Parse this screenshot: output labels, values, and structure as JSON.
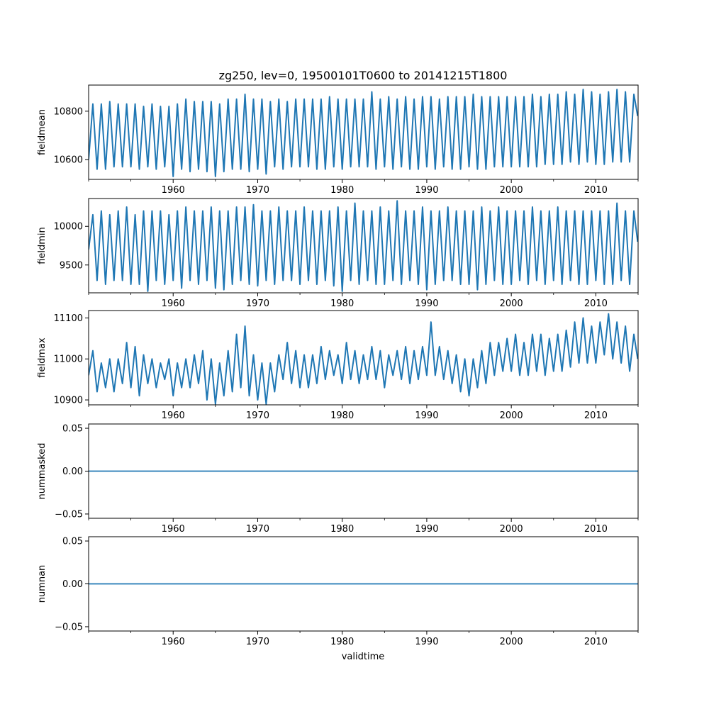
{
  "title": "zg250, lev=0, 19500101T0600 to 20141215T1800",
  "xlabel": "validtime",
  "series_color": "#1f77b4",
  "chart_data": [
    {
      "type": "line",
      "ylabel": "fieldmean",
      "xlim": [
        1950.0,
        2015.0
      ],
      "ylim": [
        10518,
        10908
      ],
      "yticks": [
        10600,
        10800
      ],
      "ytick_labels": [
        "10600",
        "10800"
      ],
      "xticks": [
        1960,
        1970,
        1980,
        1990,
        2000,
        2010
      ],
      "xtick_labels": [
        "1960",
        "1970",
        "1980",
        "1990",
        "2000",
        "2010"
      ],
      "series": [
        {
          "x": [
            1950.0,
            1950.5,
            1951.0,
            1951.5,
            1952.0,
            1952.5,
            1953.0,
            1953.5,
            1954.0,
            1954.5,
            1955.0,
            1955.5,
            1956.0,
            1956.5,
            1957.0,
            1957.5,
            1958.0,
            1958.5,
            1959.0,
            1959.5,
            1960.0,
            1960.5,
            1961.0,
            1961.5,
            1962.0,
            1962.5,
            1963.0,
            1963.5,
            1964.0,
            1964.5,
            1965.0,
            1965.5,
            1966.0,
            1966.5,
            1967.0,
            1967.5,
            1968.0,
            1968.5,
            1969.0,
            1969.5,
            1970.0,
            1970.5,
            1971.0,
            1971.5,
            1972.0,
            1972.5,
            1973.0,
            1973.5,
            1974.0,
            1974.5,
            1975.0,
            1975.5,
            1976.0,
            1976.5,
            1977.0,
            1977.5,
            1978.0,
            1978.5,
            1979.0,
            1979.5,
            1980.0,
            1980.5,
            1981.0,
            1981.5,
            1982.0,
            1982.5,
            1983.0,
            1983.5,
            1984.0,
            1984.5,
            1985.0,
            1985.5,
            1986.0,
            1986.5,
            1987.0,
            1987.5,
            1988.0,
            1988.5,
            1989.0,
            1989.5,
            1990.0,
            1990.5,
            1991.0,
            1991.5,
            1992.0,
            1992.5,
            1993.0,
            1993.5,
            1994.0,
            1994.5,
            1995.0,
            1995.5,
            1996.0,
            1996.5,
            1997.0,
            1997.5,
            1998.0,
            1998.5,
            1999.0,
            1999.5,
            2000.0,
            2000.5,
            2001.0,
            2001.5,
            2002.0,
            2002.5,
            2003.0,
            2003.5,
            2004.0,
            2004.5,
            2005.0,
            2005.5,
            2006.0,
            2006.5,
            2007.0,
            2007.5,
            2008.0,
            2008.5,
            2009.0,
            2009.5,
            2010.0,
            2010.5,
            2011.0,
            2011.5,
            2012.0,
            2012.5,
            2013.0,
            2013.5,
            2014.0,
            2014.5,
            2014.95
          ],
          "y": [
            10600,
            10830,
            10560,
            10830,
            10560,
            10840,
            10570,
            10830,
            10570,
            10830,
            10570,
            10830,
            10560,
            10820,
            10570,
            10830,
            10560,
            10820,
            10570,
            10820,
            10530,
            10830,
            10560,
            10850,
            10550,
            10840,
            10560,
            10840,
            10550,
            10840,
            10530,
            10830,
            10550,
            10850,
            10560,
            10850,
            10560,
            10870,
            10550,
            10850,
            10560,
            10850,
            10540,
            10840,
            10570,
            10850,
            10560,
            10840,
            10570,
            10850,
            10570,
            10850,
            10570,
            10850,
            10560,
            10850,
            10560,
            10860,
            10570,
            10850,
            10560,
            10850,
            10570,
            10850,
            10570,
            10850,
            10570,
            10880,
            10560,
            10850,
            10570,
            10860,
            10560,
            10850,
            10570,
            10860,
            10560,
            10850,
            10560,
            10860,
            10570,
            10860,
            10560,
            10850,
            10570,
            10860,
            10560,
            10860,
            10560,
            10860,
            10570,
            10870,
            10560,
            10860,
            10560,
            10860,
            10570,
            10860,
            10570,
            10860,
            10570,
            10860,
            10570,
            10860,
            10570,
            10870,
            10570,
            10860,
            10580,
            10870,
            10580,
            10870,
            10580,
            10880,
            10590,
            10870,
            10580,
            10890,
            10590,
            10880,
            10580,
            10870,
            10580,
            10880,
            10590,
            10890,
            10590,
            10880,
            10590,
            10870,
            10780
          ]
        }
      ]
    },
    {
      "type": "line",
      "ylabel": "fieldmin",
      "xlim": [
        1950.0,
        2015.0
      ],
      "ylim": [
        9140,
        10360
      ],
      "yticks": [
        9500,
        10000
      ],
      "ytick_labels": [
        "9500",
        "10000"
      ],
      "xticks": [
        1960,
        1970,
        1980,
        1990,
        2000,
        2010
      ],
      "xtick_labels": [
        "1960",
        "1970",
        "1980",
        "1990",
        "2000",
        "2010"
      ],
      "series": [
        {
          "x": [
            1950.0,
            1950.5,
            1951.0,
            1951.5,
            1952.0,
            1952.5,
            1953.0,
            1953.5,
            1954.0,
            1954.5,
            1955.0,
            1955.5,
            1956.0,
            1956.5,
            1957.0,
            1957.5,
            1958.0,
            1958.5,
            1959.0,
            1959.5,
            1960.0,
            1960.5,
            1961.0,
            1961.5,
            1962.0,
            1962.5,
            1963.0,
            1963.5,
            1964.0,
            1964.5,
            1965.0,
            1965.5,
            1966.0,
            1966.5,
            1967.0,
            1967.5,
            1968.0,
            1968.5,
            1969.0,
            1969.5,
            1970.0,
            1970.5,
            1971.0,
            1971.5,
            1972.0,
            1972.5,
            1973.0,
            1973.5,
            1974.0,
            1974.5,
            1975.0,
            1975.5,
            1976.0,
            1976.5,
            1977.0,
            1977.5,
            1978.0,
            1978.5,
            1979.0,
            1979.5,
            1980.0,
            1980.5,
            1981.0,
            1981.5,
            1982.0,
            1982.5,
            1983.0,
            1983.5,
            1984.0,
            1984.5,
            1985.0,
            1985.5,
            1986.0,
            1986.5,
            1987.0,
            1987.5,
            1988.0,
            1988.5,
            1989.0,
            1989.5,
            1990.0,
            1990.5,
            1991.0,
            1991.5,
            1992.0,
            1992.5,
            1993.0,
            1993.5,
            1994.0,
            1994.5,
            1995.0,
            1995.5,
            1996.0,
            1996.5,
            1997.0,
            1997.5,
            1998.0,
            1998.5,
            1999.0,
            1999.5,
            2000.0,
            2000.5,
            2001.0,
            2001.5,
            2002.0,
            2002.5,
            2003.0,
            2003.5,
            2004.0,
            2004.5,
            2005.0,
            2005.5,
            2006.0,
            2006.5,
            2007.0,
            2007.5,
            2008.0,
            2008.5,
            2009.0,
            2009.5,
            2010.0,
            2010.5,
            2011.0,
            2011.5,
            2012.0,
            2012.5,
            2013.0,
            2013.5,
            2014.0,
            2014.5,
            2014.95
          ],
          "y": [
            9700,
            10150,
            9300,
            10200,
            9250,
            10150,
            9300,
            10200,
            9300,
            10250,
            9250,
            10150,
            9250,
            10200,
            9160,
            10200,
            9300,
            10200,
            9250,
            10150,
            9300,
            10200,
            9200,
            10250,
            9300,
            10200,
            9250,
            10200,
            9300,
            10250,
            9200,
            10200,
            9180,
            10200,
            9250,
            10250,
            9300,
            10250,
            9250,
            10280,
            9230,
            10200,
            9300,
            10200,
            9250,
            10250,
            9300,
            10200,
            9300,
            10200,
            9250,
            10250,
            9300,
            10200,
            9250,
            10200,
            9300,
            10200,
            9230,
            10250,
            9160,
            10200,
            9300,
            10300,
            9250,
            10200,
            9300,
            10200,
            9250,
            10250,
            9250,
            10200,
            9300,
            10330,
            9250,
            10200,
            9300,
            10200,
            9250,
            10250,
            9180,
            10200,
            9250,
            10200,
            9300,
            10250,
            9300,
            10200,
            9250,
            10200,
            9250,
            10200,
            9180,
            10250,
            9250,
            10200,
            9300,
            10250,
            9250,
            10200,
            9250,
            10200,
            9300,
            10200,
            9250,
            10250,
            9300,
            10200,
            9250,
            10200,
            9300,
            10250,
            9250,
            10200,
            9300,
            10200,
            9250,
            10200,
            9250,
            10200,
            9300,
            10200,
            9250,
            10200,
            9250,
            10300,
            9300,
            10200,
            9250,
            10200,
            9800
          ]
        }
      ]
    },
    {
      "type": "line",
      "ylabel": "fieldmax",
      "xlim": [
        1950.0,
        2015.0
      ],
      "ylim": [
        10888,
        11118
      ],
      "yticks": [
        10900,
        11000,
        11100
      ],
      "ytick_labels": [
        "10900",
        "11000",
        "11100"
      ],
      "xticks": [
        1960,
        1970,
        1980,
        1990,
        2000,
        2010
      ],
      "xtick_labels": [
        "1960",
        "1970",
        "1980",
        "1990",
        "2000",
        "2010"
      ],
      "series": [
        {
          "x": [
            1950.0,
            1950.5,
            1951.0,
            1951.5,
            1952.0,
            1952.5,
            1953.0,
            1953.5,
            1954.0,
            1954.5,
            1955.0,
            1955.5,
            1956.0,
            1956.5,
            1957.0,
            1957.5,
            1958.0,
            1958.5,
            1959.0,
            1959.5,
            1960.0,
            1960.5,
            1961.0,
            1961.5,
            1962.0,
            1962.5,
            1963.0,
            1963.5,
            1964.0,
            1964.5,
            1965.0,
            1965.5,
            1966.0,
            1966.5,
            1967.0,
            1967.5,
            1968.0,
            1968.5,
            1969.0,
            1969.5,
            1970.0,
            1970.5,
            1971.0,
            1971.5,
            1972.0,
            1972.5,
            1973.0,
            1973.5,
            1974.0,
            1974.5,
            1975.0,
            1975.5,
            1976.0,
            1976.5,
            1977.0,
            1977.5,
            1978.0,
            1978.5,
            1979.0,
            1979.5,
            1980.0,
            1980.5,
            1981.0,
            1981.5,
            1982.0,
            1982.5,
            1983.0,
            1983.5,
            1984.0,
            1984.5,
            1985.0,
            1985.5,
            1986.0,
            1986.5,
            1987.0,
            1987.5,
            1988.0,
            1988.5,
            1989.0,
            1989.5,
            1990.0,
            1990.5,
            1991.0,
            1991.5,
            1992.0,
            1992.5,
            1993.0,
            1993.5,
            1994.0,
            1994.5,
            1995.0,
            1995.5,
            1996.0,
            1996.5,
            1997.0,
            1997.5,
            1998.0,
            1998.5,
            1999.0,
            1999.5,
            2000.0,
            2000.5,
            2001.0,
            2001.5,
            2002.0,
            2002.5,
            2003.0,
            2003.5,
            2004.0,
            2004.5,
            2005.0,
            2005.5,
            2006.0,
            2006.5,
            2007.0,
            2007.5,
            2008.0,
            2008.5,
            2009.0,
            2009.5,
            2010.0,
            2010.5,
            2011.0,
            2011.5,
            2012.0,
            2012.5,
            2013.0,
            2013.5,
            2014.0,
            2014.5,
            2014.95
          ],
          "y": [
            10960,
            11020,
            10920,
            10990,
            10930,
            11000,
            10920,
            11000,
            10940,
            11040,
            10930,
            11030,
            10910,
            11010,
            10940,
            11000,
            10930,
            10990,
            10950,
            11000,
            10910,
            10990,
            10930,
            11000,
            10930,
            11010,
            10940,
            11020,
            10900,
            11000,
            10890,
            10990,
            10910,
            11020,
            10920,
            11060,
            10930,
            11080,
            10910,
            11010,
            10900,
            10990,
            10890,
            10990,
            10920,
            11010,
            10950,
            11040,
            10940,
            11020,
            10930,
            11010,
            10930,
            11010,
            10940,
            11030,
            10950,
            11020,
            10960,
            11010,
            10940,
            11040,
            10950,
            11020,
            10940,
            11010,
            10950,
            11030,
            10950,
            11020,
            10930,
            11010,
            10960,
            11020,
            10950,
            11030,
            10940,
            11020,
            10950,
            11030,
            10960,
            11090,
            10960,
            11030,
            10950,
            11020,
            10940,
            11010,
            10920,
            11000,
            10910,
            11000,
            10930,
            11020,
            10940,
            11040,
            10960,
            11040,
            10970,
            11050,
            10970,
            11060,
            10960,
            11040,
            10960,
            11060,
            10970,
            11060,
            10960,
            11050,
            10970,
            11060,
            10970,
            11070,
            10980,
            11090,
            10990,
            11100,
            10990,
            11080,
            10990,
            11090,
            11010,
            11110,
            11000,
            11090,
            10990,
            11080,
            10970,
            11060,
            11000
          ]
        }
      ]
    },
    {
      "type": "line",
      "ylabel": "nummasked",
      "xlim": [
        1950.0,
        2015.0
      ],
      "ylim": [
        -0.055,
        0.055
      ],
      "yticks": [
        -0.05,
        0.0,
        0.05
      ],
      "ytick_labels": [
        "−0.05",
        "0.00",
        "0.05"
      ],
      "xticks": [
        1960,
        1970,
        1980,
        1990,
        2000,
        2010
      ],
      "xtick_labels": [
        "1960",
        "1970",
        "1980",
        "1990",
        "2000",
        "2010"
      ],
      "series": [
        {
          "x": [
            1950.0,
            2015.0
          ],
          "y": [
            0,
            0
          ]
        }
      ]
    },
    {
      "type": "line",
      "ylabel": "numnan",
      "xlim": [
        1950.0,
        2015.0
      ],
      "ylim": [
        -0.055,
        0.055
      ],
      "yticks": [
        -0.05,
        0.0,
        0.05
      ],
      "ytick_labels": [
        "−0.05",
        "0.00",
        "0.05"
      ],
      "xticks": [
        1960,
        1970,
        1980,
        1990,
        2000,
        2010
      ],
      "xtick_labels": [
        "1960",
        "1970",
        "1980",
        "1990",
        "2000",
        "2010"
      ],
      "series": [
        {
          "x": [
            1950.0,
            2015.0
          ],
          "y": [
            0,
            0
          ]
        }
      ]
    }
  ]
}
